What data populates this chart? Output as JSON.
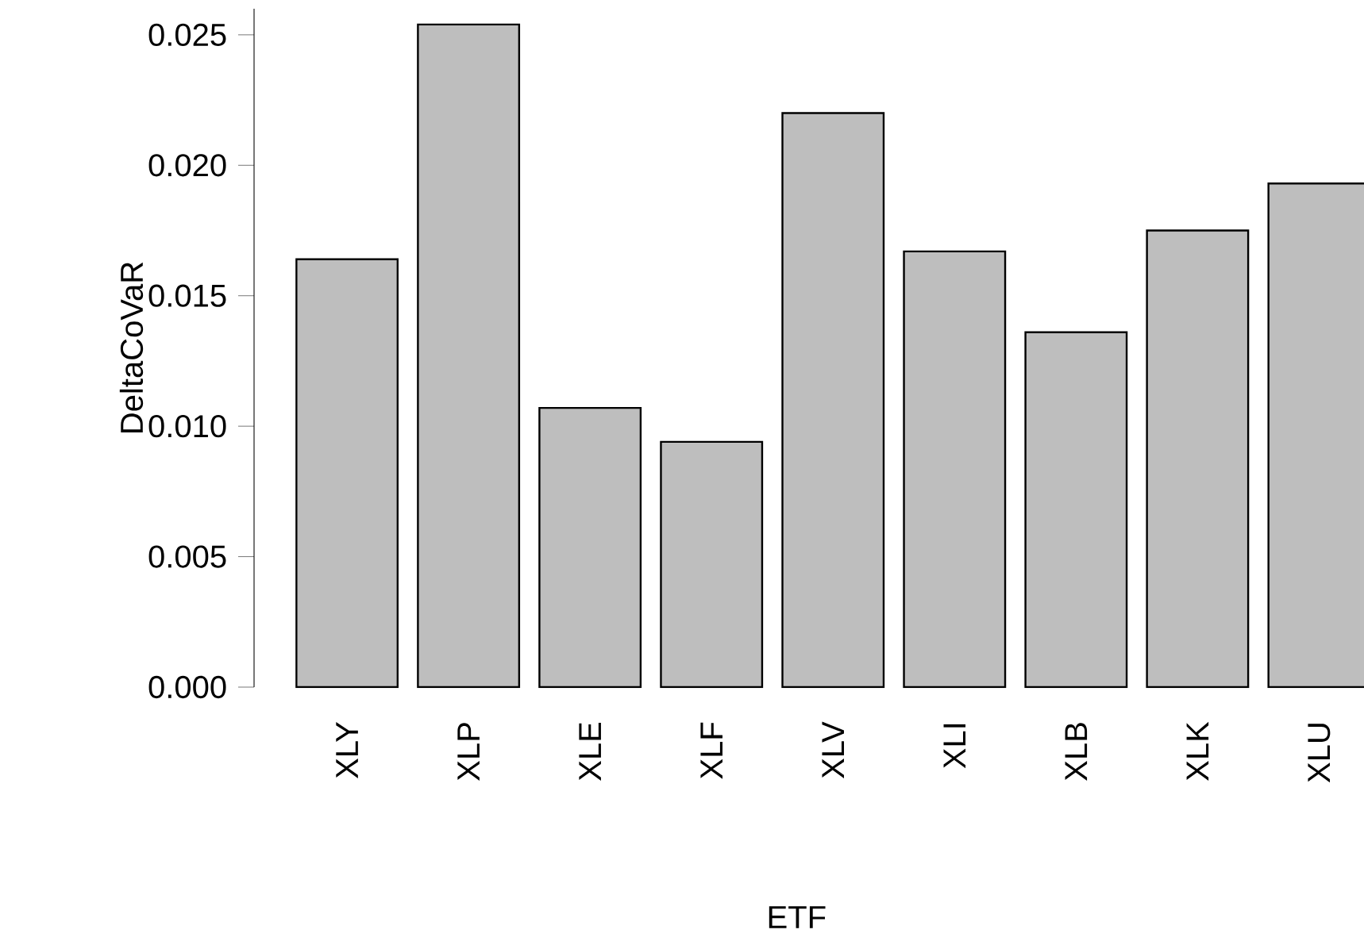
{
  "chart_data": {
    "type": "bar",
    "xlabel": "ETF",
    "ylabel": "DeltaCoVaR",
    "categories": [
      "XLY",
      "XLP",
      "XLE",
      "XLF",
      "XLV",
      "XLI",
      "XLB",
      "XLK",
      "XLU"
    ],
    "values": [
      0.0164,
      0.0254,
      0.0107,
      0.0094,
      0.022,
      0.0167,
      0.0136,
      0.0175,
      0.0193
    ],
    "color": "#bebebe",
    "ylim": [
      0,
      0.026
    ],
    "yticks": [
      {
        "value": 0,
        "label": "0.000"
      },
      {
        "value": 0.005,
        "label": "0.005"
      },
      {
        "value": 0.01,
        "label": "0.010"
      },
      {
        "value": 0.015,
        "label": "0.015"
      },
      {
        "value": 0.02,
        "label": "0.020"
      },
      {
        "value": 0.025,
        "label": "0.025"
      }
    ],
    "grid": false
  }
}
